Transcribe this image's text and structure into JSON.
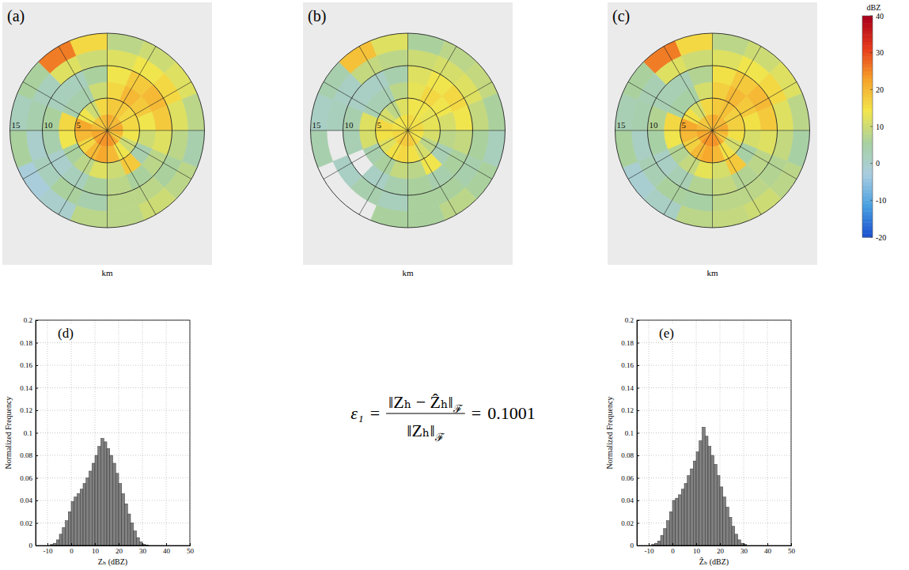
{
  "chart_data": [
    {
      "type": "polar_heatmap",
      "label": "(a)",
      "xlabel": "km",
      "rlim": [
        0,
        15
      ],
      "rticks": [
        15,
        10,
        5
      ],
      "azimuth_edges": [
        0,
        22.5,
        45,
        67.5,
        90,
        112.5,
        135,
        157.5,
        180,
        202.5,
        225,
        247.5,
        270,
        292.5,
        315,
        337.5,
        360
      ],
      "range_edges": [
        0,
        2.5,
        5,
        7.5,
        10,
        12.5,
        15
      ],
      "cells": [
        [
          22,
          18,
          16,
          14,
          12,
          8
        ],
        [
          20,
          18,
          20,
          18,
          14,
          10
        ],
        [
          20,
          16,
          18,
          20,
          16,
          12
        ],
        [
          22,
          16,
          14,
          18,
          12,
          8
        ],
        [
          20,
          14,
          10,
          12,
          8,
          4
        ],
        [
          18,
          10,
          4,
          8,
          6,
          8
        ],
        [
          22,
          14,
          18,
          6,
          8,
          10
        ],
        [
          24,
          20,
          10,
          8,
          8,
          8
        ],
        [
          24,
          22,
          12,
          6,
          4,
          8
        ],
        [
          24,
          20,
          8,
          2,
          6,
          0
        ],
        [
          22,
          16,
          6,
          0,
          2,
          -2
        ],
        [
          22,
          20,
          14,
          4,
          0,
          6
        ],
        [
          20,
          22,
          16,
          6,
          4,
          2
        ],
        [
          18,
          14,
          4,
          2,
          2,
          6
        ],
        [
          18,
          10,
          4,
          2,
          12,
          26
        ],
        [
          20,
          16,
          10,
          6,
          10,
          16
        ]
      ]
    },
    {
      "type": "polar_heatmap",
      "label": "(b)",
      "xlabel": "km",
      "rlim": [
        0,
        15
      ],
      "rticks": [
        15,
        10,
        5
      ],
      "azimuth_edges": [
        0,
        22.5,
        45,
        67.5,
        90,
        112.5,
        135,
        157.5,
        180,
        202.5,
        225,
        247.5,
        270,
        292.5,
        315,
        337.5,
        360
      ],
      "range_edges": [
        0,
        2.5,
        5,
        7.5,
        10,
        12.5,
        15
      ],
      "cells": [
        [
          16,
          14,
          13,
          12,
          10,
          6
        ],
        [
          15,
          14,
          16,
          14,
          11,
          8
        ],
        [
          15,
          13,
          14,
          16,
          12,
          9
        ],
        [
          16,
          13,
          11,
          14,
          9,
          6
        ],
        [
          15,
          11,
          8,
          9,
          6,
          2
        ],
        [
          14,
          8,
          3,
          6,
          4,
          6
        ],
        [
          16,
          11,
          14,
          4,
          6,
          8
        ],
        [
          18,
          15,
          8,
          6,
          6,
          6
        ],
        [
          18,
          16,
          9,
          4,
          2,
          6
        ],
        [
          18,
          15,
          6,
          1,
          4,
          null
        ],
        [
          16,
          12,
          4,
          null,
          1,
          null
        ],
        [
          16,
          15,
          11,
          3,
          null,
          4
        ],
        [
          15,
          16,
          12,
          4,
          2,
          1
        ],
        [
          14,
          11,
          3,
          1,
          1,
          4
        ],
        [
          14,
          8,
          3,
          1,
          9,
          19
        ],
        [
          15,
          12,
          8,
          4,
          8,
          12
        ]
      ]
    },
    {
      "type": "polar_heatmap",
      "label": "(c)",
      "xlabel": "km",
      "rlim": [
        0,
        15
      ],
      "rticks": [
        15,
        10,
        5
      ],
      "azimuth_edges": [
        0,
        22.5,
        45,
        67.5,
        90,
        112.5,
        135,
        157.5,
        180,
        202.5,
        225,
        247.5,
        270,
        292.5,
        315,
        337.5,
        360
      ],
      "range_edges": [
        0,
        2.5,
        5,
        7.5,
        10,
        12.5,
        15
      ],
      "cells": [
        [
          22,
          18,
          17,
          15,
          12,
          8
        ],
        [
          20,
          19,
          20,
          18,
          14,
          10
        ],
        [
          20,
          17,
          18,
          20,
          16,
          12
        ],
        [
          22,
          17,
          15,
          18,
          12,
          8
        ],
        [
          20,
          15,
          11,
          12,
          9,
          5
        ],
        [
          18,
          11,
          5,
          8,
          7,
          8
        ],
        [
          22,
          15,
          18,
          7,
          8,
          10
        ],
        [
          24,
          20,
          11,
          9,
          8,
          9
        ],
        [
          24,
          22,
          13,
          7,
          5,
          8
        ],
        [
          24,
          20,
          9,
          3,
          6,
          1
        ],
        [
          22,
          17,
          7,
          1,
          3,
          -1
        ],
        [
          22,
          20,
          14,
          5,
          1,
          6
        ],
        [
          20,
          22,
          16,
          7,
          4,
          3
        ],
        [
          18,
          15,
          5,
          3,
          3,
          6
        ],
        [
          18,
          11,
          5,
          3,
          12,
          26
        ],
        [
          20,
          16,
          11,
          7,
          10,
          16
        ]
      ],
      "colorbar": {
        "title": "dBZ",
        "range": [
          -20,
          40
        ],
        "ticks": [
          -20,
          -10,
          0,
          10,
          20,
          30,
          40
        ]
      }
    },
    {
      "type": "histogram",
      "label": "(d)",
      "xlabel": "Zₕ (dBZ)",
      "ylabel": "Normalized Frequency",
      "color": "#808080",
      "bins": [
        -10,
        -8.75,
        -7.5,
        -6.25,
        -5,
        -3.75,
        -2.5,
        -1.25,
        0,
        1.25,
        2.5,
        3.75,
        5,
        6.25,
        7.5,
        8.75,
        10,
        11.25,
        12.5,
        13.75,
        15,
        16.25,
        17.5,
        18.75,
        20,
        21.25,
        22.5,
        23.75,
        25,
        26.25,
        27.5,
        28.75,
        30,
        31.25,
        32.5,
        33.75,
        35
      ],
      "values": [
        0,
        0.001,
        0.002,
        0.005,
        0.01,
        0.016,
        0.022,
        0.03,
        0.039,
        0.043,
        0.046,
        0.05,
        0.055,
        0.06,
        0.066,
        0.073,
        0.08,
        0.088,
        0.095,
        0.092,
        0.086,
        0.08,
        0.073,
        0.064,
        0.055,
        0.046,
        0.037,
        0.028,
        0.02,
        0.013,
        0.007,
        0.003,
        0.001,
        0.0005,
        0,
        0
      ],
      "xlim": [
        -15,
        50
      ],
      "xticks": [
        -10,
        0,
        10,
        20,
        30,
        40,
        50
      ],
      "ylim": [
        0,
        0.2
      ],
      "yticks": [
        0,
        0.02,
        0.04,
        0.06,
        0.08,
        0.1,
        0.12,
        0.14,
        0.16,
        0.18,
        0.2
      ],
      "grid": true
    },
    {
      "type": "histogram",
      "label": "(e)",
      "xlabel": "Ẑₕ (dBZ)",
      "ylabel": "Normalized Frequency",
      "color": "#808080",
      "bins": [
        -10,
        -8.75,
        -7.5,
        -6.25,
        -5,
        -3.75,
        -2.5,
        -1.25,
        0,
        1.25,
        2.5,
        3.75,
        5,
        6.25,
        7.5,
        8.75,
        10,
        11.25,
        12.5,
        13.75,
        15,
        16.25,
        17.5,
        18.75,
        20,
        21.25,
        22.5,
        23.75,
        25,
        26.25,
        27.5,
        28.75,
        30,
        31.25,
        32.5,
        33.75,
        35
      ],
      "values": [
        0,
        0.001,
        0.002,
        0.004,
        0.009,
        0.015,
        0.022,
        0.03,
        0.04,
        0.042,
        0.045,
        0.05,
        0.055,
        0.062,
        0.068,
        0.075,
        0.083,
        0.093,
        0.105,
        0.097,
        0.088,
        0.08,
        0.072,
        0.062,
        0.052,
        0.043,
        0.034,
        0.025,
        0.017,
        0.01,
        0.005,
        0.002,
        0.001,
        0,
        0,
        0
      ],
      "xlim": [
        -15,
        50
      ],
      "xticks": [
        -10,
        0,
        10,
        20,
        30,
        40,
        50
      ],
      "ylim": [
        0,
        0.2
      ],
      "yticks": [
        0,
        0.02,
        0.04,
        0.06,
        0.08,
        0.1,
        0.12,
        0.14,
        0.16,
        0.18,
        0.2
      ],
      "grid": true
    }
  ],
  "equation": {
    "lhs": "ε₁",
    "equals": "=",
    "numerator": "‖Zₕ − Ẑₕ‖",
    "denominator": "‖Zₕ‖",
    "norm": "ℱ",
    "value": 0.1001
  }
}
